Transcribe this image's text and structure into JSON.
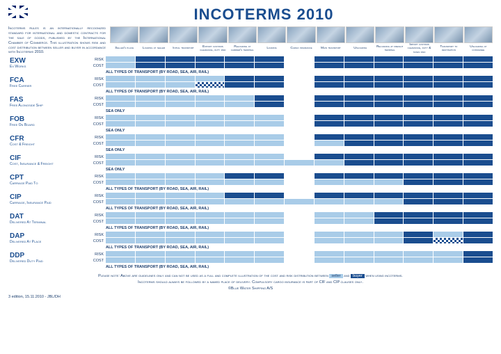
{
  "title": "INCOTERMS 2010",
  "intro": "Incoterms rules is an internationally recognized standard for international and domestic contracts for the sale of goods, published by the International Chamber of Commerce. This illustration shows risk and cost distribution between seller and buyer in accordance with Incoterms 2010.",
  "colors": {
    "seller": "#a9cce8",
    "buyer": "#1a4d8f",
    "shared": "checker",
    "none": "transparent"
  },
  "columns": [
    "Seller's place",
    "Loading at seller",
    "Initial transport",
    "Export customs clearance, duty paid",
    "Reloading at carrier's terminal",
    "Loading",
    "Cargo insurance",
    "Main transport",
    "Unloading",
    "Reloading at freight terminal",
    "Import customs clearance, duty & taxes paid",
    "Transport to destination",
    "Unloading at consignee"
  ],
  "terms": [
    {
      "code": "EXW",
      "name": "Ex Works",
      "note": "ALL TYPES OF TRANSPORT (BY ROAD, SEA, AIR, RAIL)",
      "risk": [
        "seller",
        "buyer",
        "buyer",
        "buyer",
        "buyer",
        "buyer",
        "none",
        "buyer",
        "buyer",
        "buyer",
        "buyer",
        "buyer",
        "buyer"
      ],
      "cost": [
        "seller",
        "buyer",
        "buyer",
        "buyer",
        "buyer",
        "buyer",
        "none",
        "buyer",
        "buyer",
        "buyer",
        "buyer",
        "buyer",
        "buyer"
      ]
    },
    {
      "code": "FCA",
      "name": "Free Carrier",
      "note": "ALL TYPES OF TRANSPORT (BY ROAD, SEA, AIR, RAIL)",
      "risk": [
        "seller",
        "seller",
        "seller",
        "seller",
        "buyer",
        "buyer",
        "none",
        "buyer",
        "buyer",
        "buyer",
        "buyer",
        "buyer",
        "buyer"
      ],
      "cost": [
        "seller",
        "seller",
        "seller",
        "shared",
        "buyer",
        "buyer",
        "none",
        "buyer",
        "buyer",
        "buyer",
        "buyer",
        "buyer",
        "buyer"
      ]
    },
    {
      "code": "FAS",
      "name": "Free Alongside Ship",
      "note": "SEA ONLY",
      "risk": [
        "seller",
        "seller",
        "seller",
        "seller",
        "seller",
        "buyer",
        "none",
        "buyer",
        "buyer",
        "buyer",
        "buyer",
        "buyer",
        "buyer"
      ],
      "cost": [
        "seller",
        "seller",
        "seller",
        "seller",
        "seller",
        "buyer",
        "none",
        "buyer",
        "buyer",
        "buyer",
        "buyer",
        "buyer",
        "buyer"
      ]
    },
    {
      "code": "FOB",
      "name": "Free On Board",
      "note": "SEA ONLY",
      "risk": [
        "seller",
        "seller",
        "seller",
        "seller",
        "seller",
        "seller",
        "none",
        "buyer",
        "buyer",
        "buyer",
        "buyer",
        "buyer",
        "buyer"
      ],
      "cost": [
        "seller",
        "seller",
        "seller",
        "seller",
        "seller",
        "seller",
        "none",
        "buyer",
        "buyer",
        "buyer",
        "buyer",
        "buyer",
        "buyer"
      ]
    },
    {
      "code": "CFR",
      "name": "Cost & Freight",
      "note": "SEA ONLY",
      "risk": [
        "seller",
        "seller",
        "seller",
        "seller",
        "seller",
        "seller",
        "none",
        "buyer",
        "buyer",
        "buyer",
        "buyer",
        "buyer",
        "buyer"
      ],
      "cost": [
        "seller",
        "seller",
        "seller",
        "seller",
        "seller",
        "seller",
        "none",
        "seller",
        "buyer",
        "buyer",
        "buyer",
        "buyer",
        "buyer"
      ]
    },
    {
      "code": "CIF",
      "name": "Cost, Insurance & Freight",
      "note": "SEA ONLY",
      "risk": [
        "seller",
        "seller",
        "seller",
        "seller",
        "seller",
        "seller",
        "none",
        "buyer",
        "buyer",
        "buyer",
        "buyer",
        "buyer",
        "buyer"
      ],
      "cost": [
        "seller",
        "seller",
        "seller",
        "seller",
        "seller",
        "seller",
        "seller",
        "seller",
        "buyer",
        "buyer",
        "buyer",
        "buyer",
        "buyer"
      ]
    },
    {
      "code": "CPT",
      "name": "Carriage Paid To",
      "note": "ALL TYPES OF TRANSPORT (BY ROAD, SEA, AIR, RAIL)",
      "risk": [
        "seller",
        "seller",
        "seller",
        "seller",
        "buyer",
        "buyer",
        "none",
        "buyer",
        "buyer",
        "buyer",
        "buyer",
        "buyer",
        "buyer"
      ],
      "cost": [
        "seller",
        "seller",
        "seller",
        "seller",
        "seller",
        "seller",
        "none",
        "seller",
        "seller",
        "seller",
        "buyer",
        "buyer",
        "buyer"
      ]
    },
    {
      "code": "CIP",
      "name": "Carriage, Insurance Paid",
      "note": "ALL TYPES OF TRANSPORT (BY ROAD, SEA, AIR, RAIL)",
      "risk": [
        "seller",
        "seller",
        "seller",
        "seller",
        "buyer",
        "buyer",
        "none",
        "buyer",
        "buyer",
        "buyer",
        "buyer",
        "buyer",
        "buyer"
      ],
      "cost": [
        "seller",
        "seller",
        "seller",
        "seller",
        "seller",
        "seller",
        "seller",
        "seller",
        "seller",
        "seller",
        "buyer",
        "buyer",
        "buyer"
      ]
    },
    {
      "code": "DAT",
      "name": "Delivered At Terminal",
      "note": "ALL TYPES OF TRANSPORT (BY ROAD, SEA, AIR, RAIL)",
      "risk": [
        "seller",
        "seller",
        "seller",
        "seller",
        "seller",
        "seller",
        "none",
        "seller",
        "seller",
        "buyer",
        "buyer",
        "buyer",
        "buyer"
      ],
      "cost": [
        "seller",
        "seller",
        "seller",
        "seller",
        "seller",
        "seller",
        "none",
        "seller",
        "seller",
        "buyer",
        "buyer",
        "buyer",
        "buyer"
      ]
    },
    {
      "code": "DAP",
      "name": "Delivered At Place",
      "note": "ALL TYPES OF TRANSPORT (BY ROAD, SEA, AIR, RAIL)",
      "risk": [
        "seller",
        "seller",
        "seller",
        "seller",
        "seller",
        "seller",
        "none",
        "seller",
        "seller",
        "seller",
        "buyer",
        "seller",
        "buyer"
      ],
      "cost": [
        "seller",
        "seller",
        "seller",
        "seller",
        "seller",
        "seller",
        "none",
        "seller",
        "seller",
        "seller",
        "buyer",
        "shared",
        "buyer"
      ]
    },
    {
      "code": "DDP",
      "name": "Delivered Duty Paid",
      "note": "ALL TYPES OF TRANSPORT (BY ROAD, SEA, AIR, RAIL)",
      "risk": [
        "seller",
        "seller",
        "seller",
        "seller",
        "seller",
        "seller",
        "none",
        "seller",
        "seller",
        "seller",
        "seller",
        "seller",
        "buyer"
      ],
      "cost": [
        "seller",
        "seller",
        "seller",
        "seller",
        "seller",
        "seller",
        "none",
        "seller",
        "seller",
        "seller",
        "seller",
        "seller",
        "buyer"
      ]
    }
  ],
  "rc": {
    "risk": "RISK",
    "cost": "COST"
  },
  "footer1a": "Please note: Above are guidelines only and can not be used as a full and complete illustration of the cost and risk distribution between ",
  "footer1b": " and ",
  "footer1c": " when using incoterms.",
  "footer_seller": "seller",
  "footer_buyer": "buyer",
  "footer2": "Incoterms should always be followed by a named place of delivery. Compulsory cargo insurance is part of CIF and CIP clauses only.",
  "copyright": "©Blue Water Shipping A/S",
  "meta": "3 edition, 15.11.2010 - JBL/DH"
}
